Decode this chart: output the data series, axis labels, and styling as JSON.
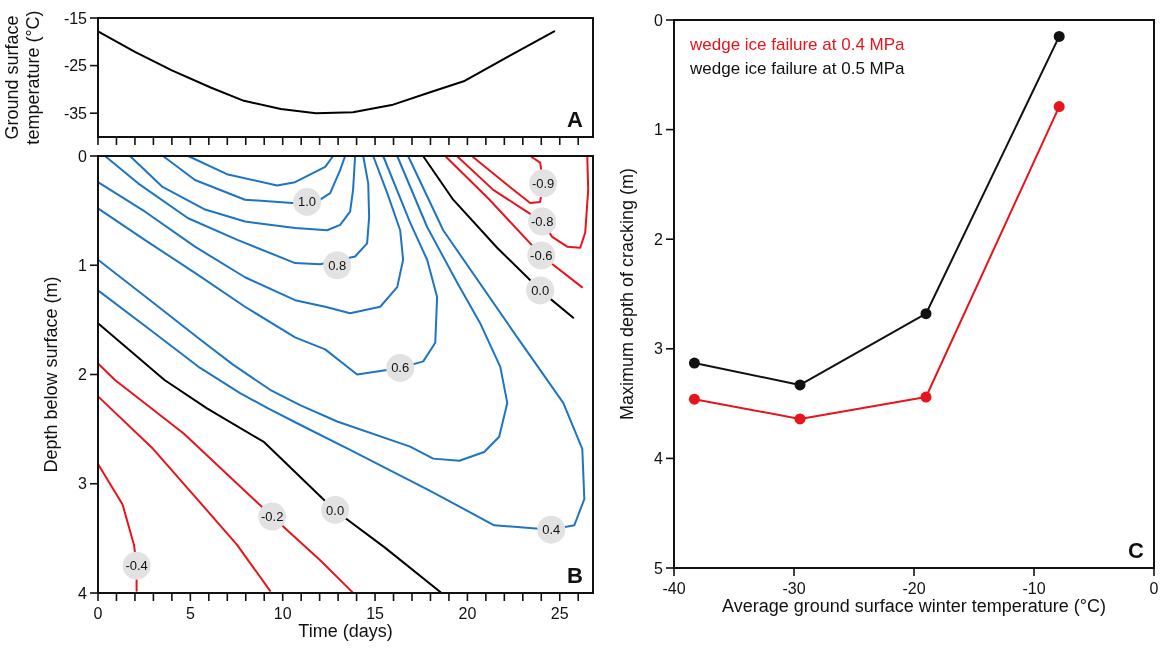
{
  "chart_data": [
    {
      "type": "line",
      "ylabel": "Ground surface temperature (°C)",
      "xlim": [
        0,
        26.8
      ],
      "ylim": [
        -40,
        -15
      ],
      "yticks": [
        -15,
        -25,
        -35
      ],
      "tick_labels": "y",
      "xticks": [
        {
          "value": 0,
          "label": null
        },
        {
          "value": 1,
          "label": null
        },
        {
          "value": 2,
          "label": null
        },
        {
          "value": 3,
          "label": null
        },
        {
          "value": 4,
          "label": null
        },
        {
          "value": 5,
          "label": null
        },
        {
          "value": 6,
          "label": null
        },
        {
          "value": 7,
          "label": null
        },
        {
          "value": 8,
          "label": null
        },
        {
          "value": 9,
          "label": null
        },
        {
          "value": 10,
          "label": null
        },
        {
          "value": 11,
          "label": null
        },
        {
          "value": 12,
          "label": null
        },
        {
          "value": 13,
          "label": null
        },
        {
          "value": 14,
          "label": null
        },
        {
          "value": 15,
          "label": null
        },
        {
          "value": 16,
          "label": null
        },
        {
          "value": 17,
          "label": null
        },
        {
          "value": 18,
          "label": null
        },
        {
          "value": 19,
          "label": null
        },
        {
          "value": 20,
          "label": null
        },
        {
          "value": 21,
          "label": null
        },
        {
          "value": 22,
          "label": null
        },
        {
          "value": 23,
          "label": null
        },
        {
          "value": 24,
          "label": null
        },
        {
          "value": 25,
          "label": null
        },
        {
          "value": 26,
          "label": null
        }
      ],
      "series": [
        {
          "color": "#000000",
          "x": [
            0,
            2.0,
            4.0,
            6.1,
            7.9,
            9.9,
            11.8,
            13.8,
            15.9,
            17.9,
            19.8,
            22.3,
            24.7
          ],
          "values": [
            -17.8,
            -22.1,
            -26.0,
            -29.6,
            -32.4,
            -34.1,
            -35.0,
            -34.8,
            -33.3,
            -30.7,
            -28.3,
            -22.9,
            -17.8
          ]
        }
      ],
      "annotations": [
        "A"
      ]
    },
    {
      "type": "line",
      "xlabel": "Time (days)",
      "ylabel": "Depth below surface (m)",
      "xlim": [
        0,
        26.8
      ],
      "ylim": [
        4,
        0
      ],
      "yticks": [
        0,
        1,
        2,
        3,
        4
      ],
      "xticks": [
        0,
        {
          "value": 1,
          "label": null
        },
        {
          "value": 2,
          "label": null
        },
        {
          "value": 3,
          "label": null
        },
        {
          "value": 4,
          "label": null
        },
        5,
        {
          "value": 6,
          "label": null
        },
        {
          "value": 7,
          "label": null
        },
        {
          "value": 8,
          "label": null
        },
        {
          "value": 9,
          "label": null
        },
        10,
        {
          "value": 11,
          "label": null
        },
        {
          "value": 12,
          "label": null
        },
        {
          "value": 13,
          "label": null
        },
        {
          "value": 14,
          "label": null
        },
        15,
        {
          "value": 16,
          "label": null
        },
        {
          "value": 17,
          "label": null
        },
        {
          "value": 18,
          "label": null
        },
        {
          "value": 19,
          "label": null
        },
        20,
        {
          "value": 21,
          "label": null
        },
        {
          "value": 22,
          "label": null
        },
        {
          "value": 23,
          "label": null
        },
        {
          "value": 24,
          "label": null
        },
        25,
        {
          "value": 26,
          "label": null
        }
      ],
      "series": [
        {
          "color": "#1f74c2",
          "x": [
            4.88,
            7.04,
            9.7,
            10.67,
            12.3,
            12.73
          ],
          "values": [
            0,
            0.17,
            0.27,
            0.24,
            0.1,
            0
          ]
        },
        {
          "color": "#1f74c2",
          "x": [
            3.52,
            5.25,
            7.96,
            10.51,
            12.03,
            12.57,
            13.11,
            13.38
          ],
          "values": [
            0,
            0.22,
            0.4,
            0.43,
            0.4,
            0.34,
            0.13,
            0
          ]
        },
        {
          "color": "#1f74c2",
          "x": [
            1.73,
            3.47,
            5.8,
            7.96,
            10.67,
            12.41,
            13.11,
            13.65,
            13.81,
            13.92
          ],
          "values": [
            0,
            0.28,
            0.49,
            0.6,
            0.66,
            0.68,
            0.63,
            0.51,
            0.31,
            0
          ]
        },
        {
          "color": "#1f74c2",
          "x": [
            0.38,
            2.17,
            4.88,
            7.58,
            10.67,
            12.03,
            13.92,
            14.57,
            14.68,
            14.63,
            14.36
          ],
          "values": [
            0,
            0.25,
            0.57,
            0.77,
            0.98,
            0.99,
            0.92,
            0.8,
            0.56,
            0.25,
            0
          ]
        },
        {
          "color": "#1f74c2",
          "x": [
            0,
            2.55,
            5.25,
            7.96,
            10.67,
            12.3,
            13.65,
            15.28,
            16.2,
            16.52,
            16.36,
            15.66,
            14.9
          ],
          "values": [
            0.24,
            0.51,
            0.83,
            1.11,
            1.32,
            1.38,
            1.44,
            1.38,
            1.2,
            0.95,
            0.68,
            0.34,
            0
          ]
        },
        {
          "color": "#1f74c2",
          "x": [
            0,
            2.55,
            5.25,
            7.96,
            10.67,
            12.3,
            14.03,
            16.36,
            17.61,
            18.26,
            18.36,
            17.82,
            16.9,
            15.44
          ],
          "values": [
            0.48,
            0.77,
            1.07,
            1.38,
            1.66,
            1.77,
            2.0,
            1.94,
            1.88,
            1.71,
            1.29,
            0.95,
            0.61,
            0
          ]
        },
        {
          "color": "#1f74c2",
          "x": [
            0,
            2.82,
            5.53,
            7.31,
            9.32,
            10.94,
            12.95,
            16.9,
            18.15,
            19.56,
            20.91,
            21.72,
            22.16,
            21.78,
            20.69,
            19.45,
            17.82,
            16.2
          ],
          "values": [
            0.95,
            1.32,
            1.68,
            1.91,
            2.14,
            2.28,
            2.43,
            2.66,
            2.77,
            2.79,
            2.71,
            2.57,
            2.26,
            1.93,
            1.53,
            1.16,
            0.65,
            0
          ]
        },
        {
          "color": "#1f74c2",
          "x": [
            0,
            2.82,
            5.53,
            7.69,
            9.21,
            10.94,
            13.65,
            17.93,
            21.45,
            24.54,
            25.79,
            26.33,
            26.22,
            25.19,
            22.7,
            18.69,
            16.79
          ],
          "values": [
            1.23,
            1.59,
            1.94,
            2.17,
            2.31,
            2.46,
            2.69,
            3.06,
            3.38,
            3.42,
            3.38,
            3.14,
            2.68,
            2.26,
            1.66,
            0.68,
            0
          ]
        },
        {
          "color": "#000000",
          "x": [
            0,
            3.6,
            5.9,
            9.0,
            12.8,
            15.5,
            18.6
          ],
          "values": [
            1.53,
            2.05,
            2.31,
            2.62,
            3.24,
            3.58,
            4.0
          ]
        },
        {
          "color": "#e8141b",
          "x": [
            0,
            0.92,
            4.64,
            9.43,
            12.03,
            13.76
          ],
          "values": [
            1.9,
            2.05,
            2.54,
            3.3,
            3.7,
            3.99
          ]
        },
        {
          "color": "#e8141b",
          "x": [
            0,
            2.98,
            6.09,
            7.53,
            9.32
          ],
          "values": [
            2.2,
            2.68,
            3.28,
            3.56,
            3.98
          ]
        },
        {
          "color": "#e8141b",
          "x": [
            0,
            1.33,
            1.95,
            2.09,
            2.09
          ],
          "values": [
            2.82,
            3.19,
            3.56,
            3.75,
            3.98
          ]
        },
        {
          "color": "#000000",
          "x": [
            17.6,
            19.23,
            21.61,
            23.24,
            23.94,
            25.73
          ],
          "values": [
            0,
            0.4,
            0.84,
            1.11,
            1.23,
            1.48
          ]
        },
        {
          "color": "#e8141b",
          "x": [
            18.8,
            21.2,
            23.4,
            24.0,
            26.2
          ],
          "values": [
            0,
            0.4,
            0.8,
            0.91,
            1.2
          ]
        },
        {
          "color": "#e8141b",
          "x": [
            19.43,
            21.4,
            22.86,
            24.05,
            24.59,
            25.4,
            26.11,
            26.38,
            26.54,
            26.49
          ],
          "values": [
            0,
            0.31,
            0.47,
            0.6,
            0.74,
            0.83,
            0.84,
            0.7,
            0.31,
            0
          ]
        },
        {
          "color": "#e8141b",
          "x": [
            20.24,
            22.05,
            23.4,
            23.94,
            24.1,
            23.94,
            23.4
          ],
          "values": [
            0,
            0.25,
            0.43,
            0.42,
            0.25,
            0.06,
            0
          ]
        }
      ],
      "annotations": [
        {
          "text": "1.0",
          "x": 11.32,
          "y": 0.42
        },
        {
          "text": "0.8",
          "x": 12.95,
          "y": 1.0
        },
        {
          "text": "0.6",
          "x": 16.36,
          "y": 1.94
        },
        {
          "text": "0.4",
          "x": 24.54,
          "y": 3.42
        },
        {
          "text": "0.0",
          "x": 12.84,
          "y": 3.24
        },
        {
          "text": "-0.2",
          "x": 9.43,
          "y": 3.3
        },
        {
          "text": "-0.4",
          "x": 2.09,
          "y": 3.75
        },
        {
          "text": "-0.9",
          "x": 24.1,
          "y": 0.25
        },
        {
          "text": "-0.8",
          "x": 24.05,
          "y": 0.6
        },
        {
          "text": "-0.6",
          "x": 24.0,
          "y": 0.91
        },
        {
          "text": "0.0",
          "x": 23.94,
          "y": 1.23
        },
        "B"
      ]
    },
    {
      "type": "line",
      "xlabel": "Average ground surface winter temperature (°C)",
      "ylabel": "Maximum depth of cracking (m)",
      "xlim": [
        -40,
        0
      ],
      "xticks": [
        -40,
        -30,
        -20,
        -10,
        0
      ],
      "ylim": [
        5,
        0
      ],
      "yticks": [
        0,
        1,
        2,
        3,
        4,
        5
      ],
      "marker": "circle",
      "legend": "top left",
      "series": [
        {
          "name": "wedge ice failure at 0.4 MPa",
          "color": "#e8141b",
          "x": [
            -38.3,
            -29.5,
            -19.0,
            -7.9
          ],
          "values": [
            3.46,
            3.64,
            3.44,
            0.79
          ]
        },
        {
          "name": "wedge ice failure at 0.5 MPa",
          "color": "#111111",
          "x": [
            -38.3,
            -29.5,
            -19.0,
            -7.9
          ],
          "values": [
            3.13,
            3.33,
            2.68,
            0.15
          ]
        }
      ],
      "annotations": [
        "C"
      ]
    }
  ]
}
